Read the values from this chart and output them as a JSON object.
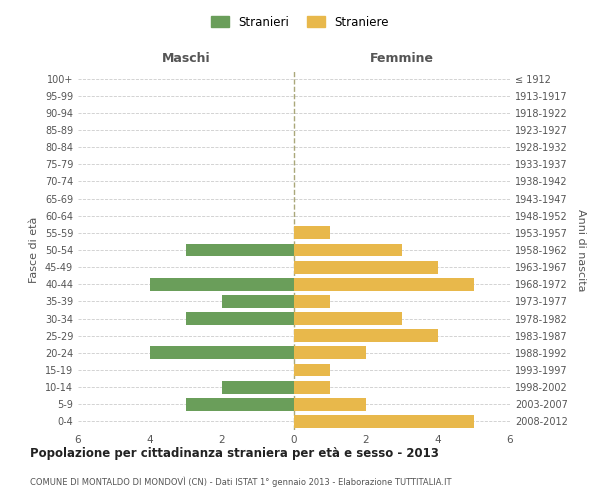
{
  "age_groups": [
    "100+",
    "95-99",
    "90-94",
    "85-89",
    "80-84",
    "75-79",
    "70-74",
    "65-69",
    "60-64",
    "55-59",
    "50-54",
    "45-49",
    "40-44",
    "35-39",
    "30-34",
    "25-29",
    "20-24",
    "15-19",
    "10-14",
    "5-9",
    "0-4"
  ],
  "birth_years": [
    "≤ 1912",
    "1913-1917",
    "1918-1922",
    "1923-1927",
    "1928-1932",
    "1933-1937",
    "1938-1942",
    "1943-1947",
    "1948-1952",
    "1953-1957",
    "1958-1962",
    "1963-1967",
    "1968-1972",
    "1973-1977",
    "1978-1982",
    "1983-1987",
    "1988-1992",
    "1993-1997",
    "1998-2002",
    "2003-2007",
    "2008-2012"
  ],
  "males": [
    0,
    0,
    0,
    0,
    0,
    0,
    0,
    0,
    0,
    0,
    3,
    0,
    4,
    2,
    3,
    0,
    4,
    0,
    2,
    3,
    0
  ],
  "females": [
    0,
    0,
    0,
    0,
    0,
    0,
    0,
    0,
    0,
    1,
    3,
    4,
    5,
    1,
    3,
    4,
    2,
    1,
    1,
    2,
    5
  ],
  "male_color": "#6a9e5a",
  "female_color": "#e8b84b",
  "bar_height": 0.75,
  "xlim": 6,
  "title": "Popolazione per cittadinanza straniera per età e sesso - 2013",
  "subtitle": "COMUNE DI MONTALDO DI MONDOVÌ (CN) - Dati ISTAT 1° gennaio 2013 - Elaborazione TUTTITALIA.IT",
  "ylabel_left": "Fasce di età",
  "ylabel_right": "Anni di nascita",
  "xlabel_left": "Maschi",
  "xlabel_right": "Femmine",
  "legend_male": "Stranieri",
  "legend_female": "Straniere",
  "grid_color": "#cccccc",
  "dashed_line_color": "#aaa87a",
  "background_color": "#ffffff"
}
